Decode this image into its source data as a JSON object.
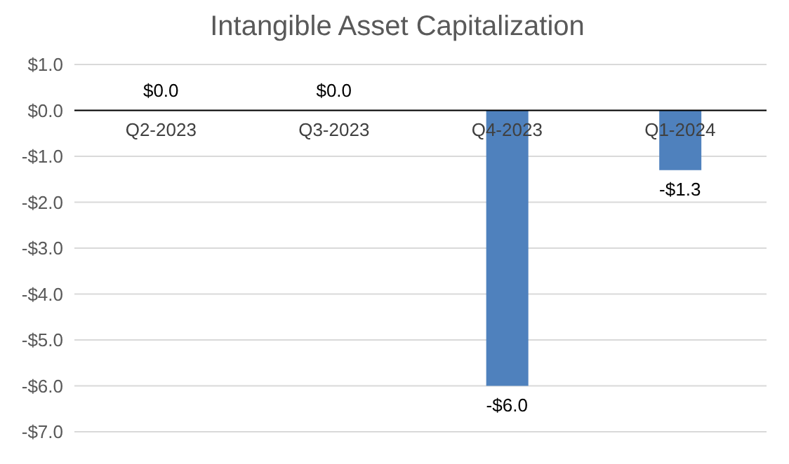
{
  "chart_data": {
    "type": "bar",
    "title": "Intangible Asset Capitalization",
    "categories": [
      "Q2-2023",
      "Q3-2023",
      "Q4-2023",
      "Q1-2024"
    ],
    "values": [
      0,
      0,
      -6.0,
      -1.3
    ],
    "value_labels": [
      "$0.0",
      "$0.0",
      "-$6.0",
      "-$1.3"
    ],
    "color": "#4f81bd",
    "ylim": [
      -7,
      1
    ],
    "yticks": [
      {
        "value": 1,
        "label": "$1.0"
      },
      {
        "value": 0,
        "label": "$0.0"
      },
      {
        "value": -1,
        "label": "-$1.0"
      },
      {
        "value": -2,
        "label": "-$2.0"
      },
      {
        "value": -3,
        "label": "-$3.0"
      },
      {
        "value": -4,
        "label": "-$4.0"
      },
      {
        "value": -5,
        "label": "-$5.0"
      },
      {
        "value": -6,
        "label": "-$6.0"
      },
      {
        "value": -7,
        "label": "-$7.0"
      }
    ],
    "grid": "y"
  }
}
